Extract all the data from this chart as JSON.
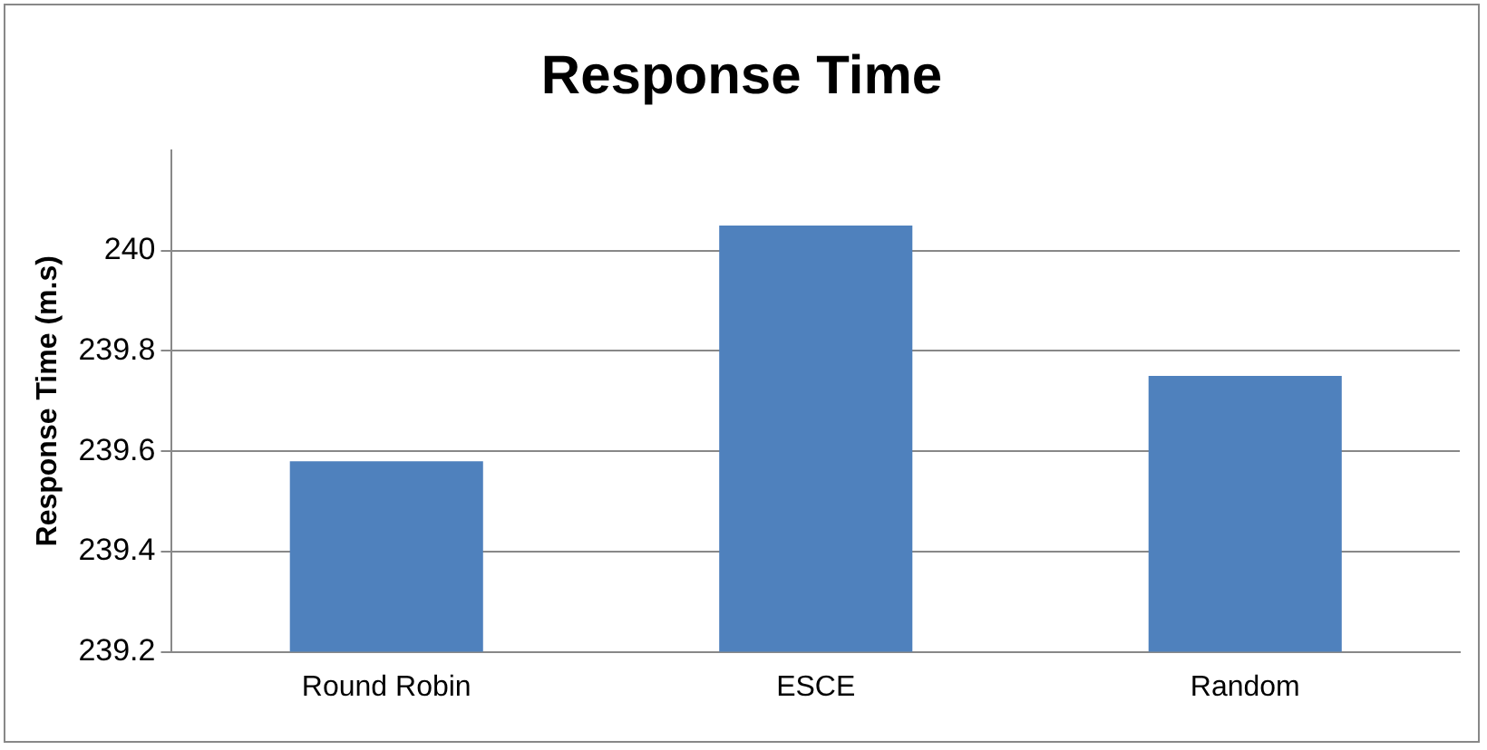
{
  "chart_data": {
    "type": "bar",
    "title": "Response Time",
    "ylabel": "Response Time (m.s)",
    "categories": [
      "Round Robin",
      "ESCE",
      "Random"
    ],
    "values": [
      239.58,
      240.05,
      239.75
    ],
    "color": "#4f81bd",
    "ylim": [
      239.2,
      240.2
    ],
    "yticks": [
      239.2,
      239.4,
      239.6,
      239.8,
      240
    ],
    "grid": "y",
    "legend": false
  }
}
